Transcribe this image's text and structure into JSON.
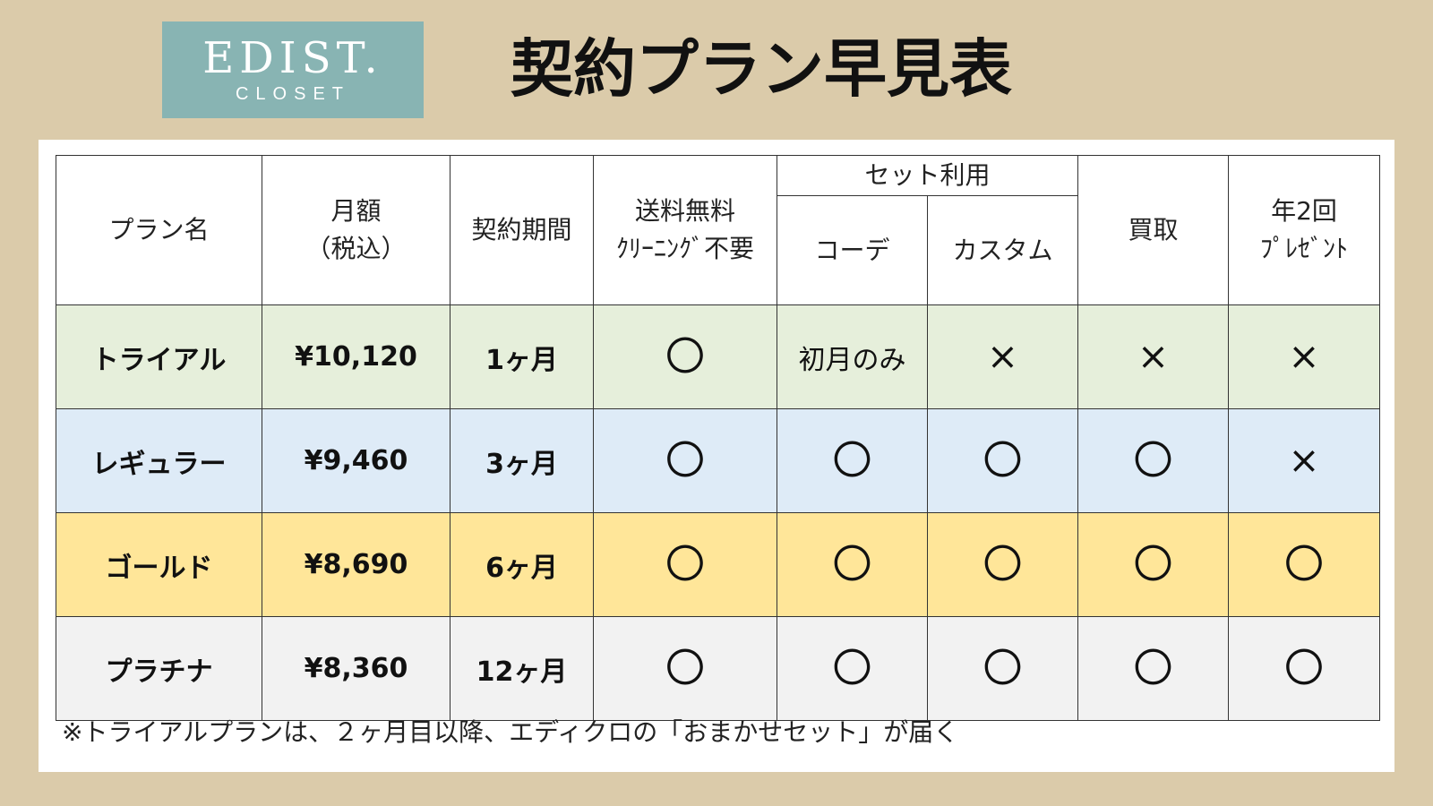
{
  "logo": {
    "main": "EDIST.",
    "sub": "CLOSET"
  },
  "title": "契約プラン早見表",
  "table": {
    "headers": {
      "plan_name": "プラン名",
      "price_line1": "月額",
      "price_line2": "（税込）",
      "period": "契約期間",
      "shipping_line1": "送料無料",
      "shipping_line2": "ｸﾘｰﾆﾝｸﾞ不要",
      "set_use": "セット利用",
      "coord": "コーデ",
      "custom": "カスタム",
      "buyout": "買取",
      "gift_line1": "年2回",
      "gift_line2": "ﾌﾟﾚｾﾞﾝﾄ"
    },
    "marks": {
      "yes": "〇",
      "no": "×"
    },
    "rows": [
      {
        "name": "トライアル",
        "price": "¥10,120",
        "period": "1ヶ月",
        "shipping": "〇",
        "coord": "初月のみ",
        "custom": "×",
        "buyout": "×",
        "gift": "×"
      },
      {
        "name": "レギュラー",
        "price": "¥9,460",
        "period": "3ヶ月",
        "shipping": "〇",
        "coord": "〇",
        "custom": "〇",
        "buyout": "〇",
        "gift": "×"
      },
      {
        "name": "ゴールド",
        "price": "¥8,690",
        "period": "6ヶ月",
        "shipping": "〇",
        "coord": "〇",
        "custom": "〇",
        "buyout": "〇",
        "gift": "〇"
      },
      {
        "name": "プラチナ",
        "price": "¥8,360",
        "period": "12ヶ月",
        "shipping": "〇",
        "coord": "〇",
        "custom": "〇",
        "buyout": "〇",
        "gift": "〇"
      }
    ],
    "row_colors": [
      "#e6efdb",
      "#deebf7",
      "#ffe699",
      "#f2f2f2"
    ]
  },
  "footnote": "※トライアルプランは、２ヶ月目以降、エディクロの「おまかせセット」が届く"
}
